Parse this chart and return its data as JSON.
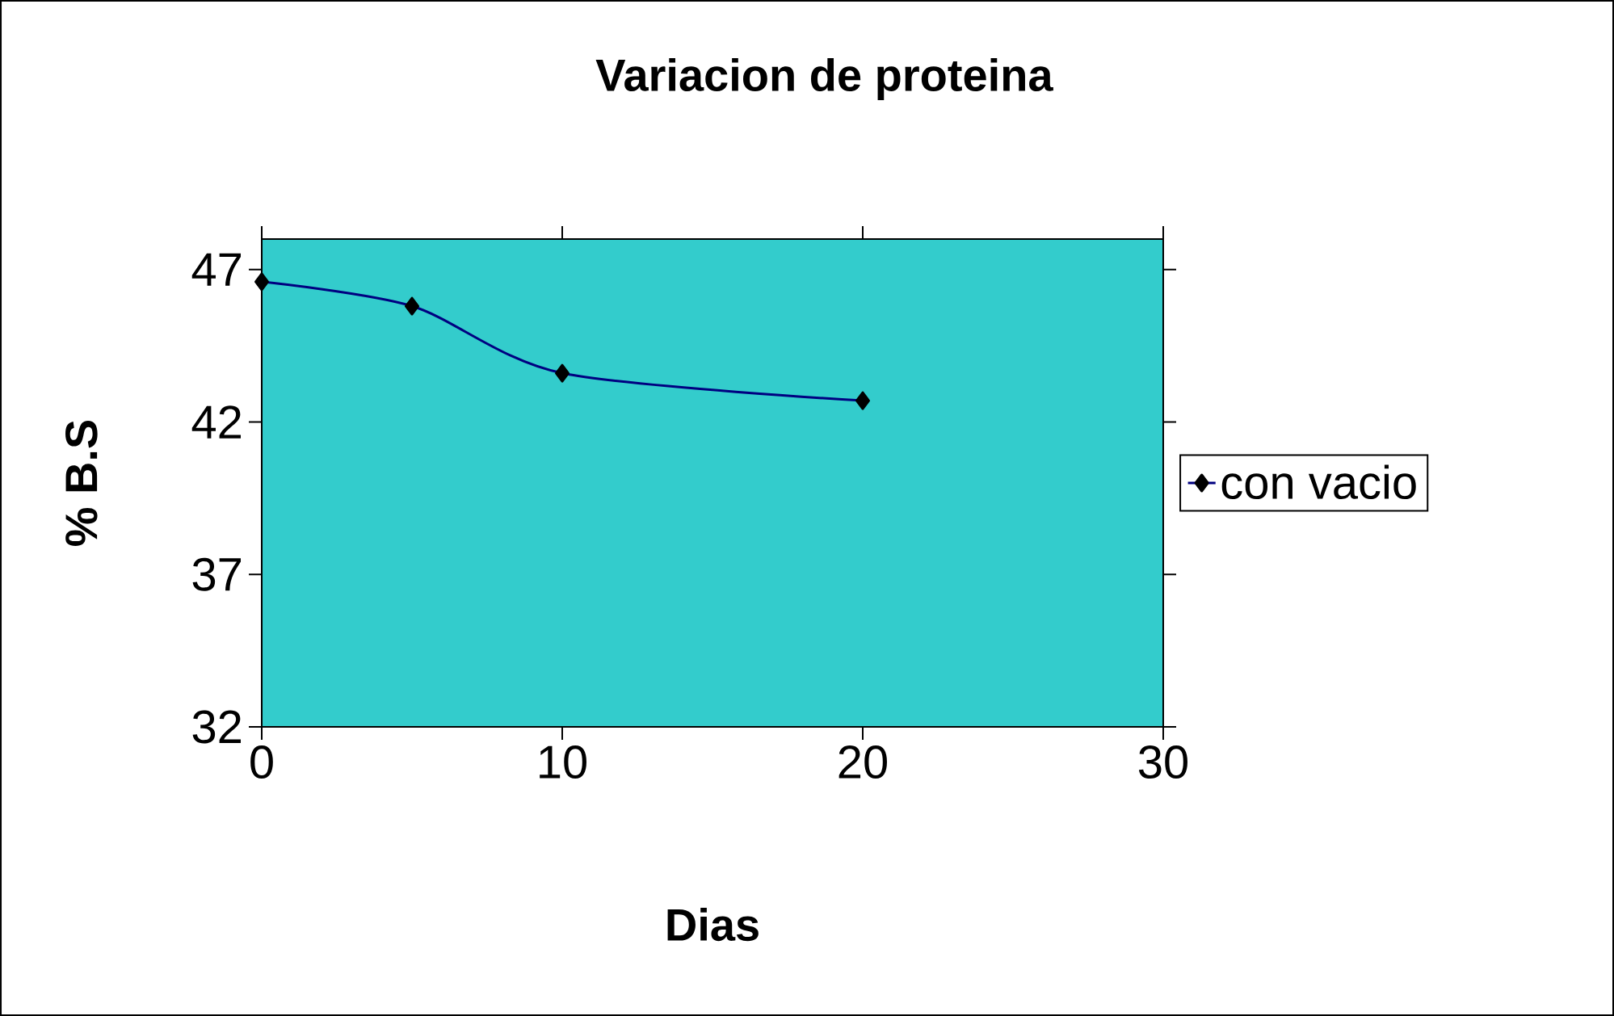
{
  "chart_data": {
    "type": "line",
    "title": "Variacion de proteina",
    "xlabel": "Dias",
    "ylabel": "% B.S",
    "x": [
      0,
      5,
      10,
      20
    ],
    "series": [
      {
        "name": "con vacio",
        "color": "#000080",
        "values": [
          46.6,
          45.8,
          43.6,
          42.7
        ]
      }
    ],
    "xlim": [
      0,
      30
    ],
    "xticks": [
      0,
      10,
      20,
      30
    ],
    "ylim": [
      32,
      48
    ],
    "yticks": [
      32,
      37,
      42,
      47
    ],
    "marker": "diamond",
    "legend": "right",
    "grid": false
  }
}
